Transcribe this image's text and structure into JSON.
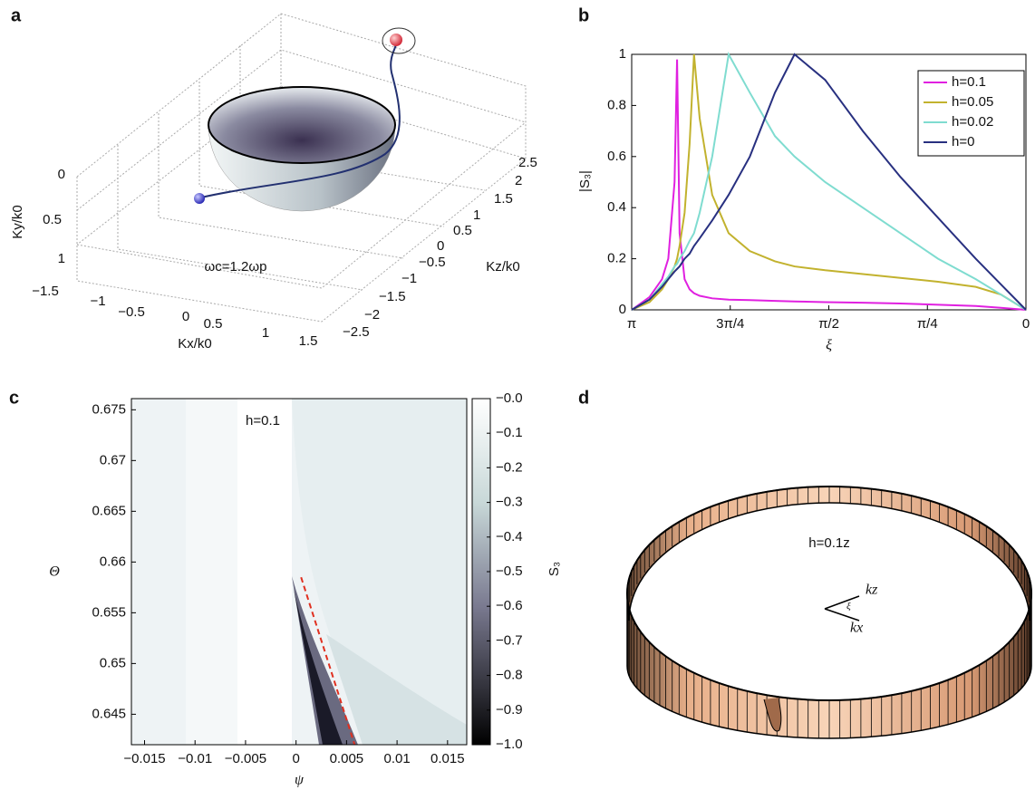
{
  "panel_labels": [
    "a",
    "b",
    "c",
    "d"
  ],
  "figure_a": {
    "x_label": "Kx/k0",
    "y_label": "Ky/k0",
    "z_label": "Kz/k0",
    "annotation": "ωc=1.2ωp",
    "x_ticks": [
      "−1.5",
      "−1",
      "−0.5",
      "0",
      "0.5",
      "1",
      "1.5"
    ],
    "y_ticks": [
      "0",
      "0.5",
      "1"
    ],
    "z_ticks": [
      "−2.5",
      "−2",
      "−1.5",
      "−1",
      "−0.5",
      "0",
      "0.5",
      "1",
      "1.5",
      "2",
      "2.5"
    ]
  },
  "figure_d": {
    "annotation": "h=0.1z",
    "kz": "kz",
    "kx": "kx",
    "angle": "ξ"
  },
  "chart_data": [
    {
      "type": "line",
      "x_label": "ξ",
      "y_label": "|S₃|",
      "x": [
        3.1416,
        3.0,
        2.9,
        2.85,
        2.8,
        2.78,
        2.76,
        2.72,
        2.68,
        2.645,
        2.6,
        2.5,
        2.369,
        2.2,
        2.0,
        1.844,
        1.6,
        1.3,
        1.0,
        0.7,
        0.4,
        0.2,
        0
      ],
      "series": [
        {
          "name": "h=0.1",
          "color": "#e020e0",
          "values": [
            0,
            0.05,
            0.12,
            0.2,
            0.5,
            0.98,
            0.3,
            0.12,
            0.08,
            0.065,
            0.055,
            0.045,
            0.04,
            0.038,
            0.035,
            0.033,
            0.03,
            0.028,
            0.025,
            0.02,
            0.015,
            0.008,
            0
          ]
        },
        {
          "name": "h=0.05",
          "color": "#c2b22e",
          "values": [
            0,
            0.03,
            0.08,
            0.12,
            0.17,
            0.2,
            0.25,
            0.38,
            0.65,
            1.0,
            0.75,
            0.45,
            0.3,
            0.23,
            0.19,
            0.17,
            0.155,
            0.14,
            0.125,
            0.11,
            0.09,
            0.06,
            0
          ]
        },
        {
          "name": "h=0.02",
          "color": "#7fdcd0",
          "values": [
            0,
            0.04,
            0.1,
            0.13,
            0.17,
            0.18,
            0.2,
            0.23,
            0.27,
            0.3,
            0.38,
            0.6,
            1.0,
            0.85,
            0.68,
            0.6,
            0.5,
            0.4,
            0.3,
            0.2,
            0.12,
            0.06,
            0
          ]
        },
        {
          "name": "h=0",
          "color": "#283080",
          "values": [
            0,
            0.04,
            0.09,
            0.12,
            0.15,
            0.16,
            0.17,
            0.2,
            0.22,
            0.25,
            0.28,
            0.35,
            0.45,
            0.6,
            0.85,
            1.0,
            0.9,
            0.7,
            0.52,
            0.36,
            0.2,
            0.1,
            0
          ]
        }
      ],
      "xlim": [
        3.1416,
        0
      ],
      "xticks": [
        {
          "value": 3.1416,
          "label": "π"
        },
        {
          "value": 2.3562,
          "label": "3π/4"
        },
        {
          "value": 1.5708,
          "label": "π/2"
        },
        {
          "value": 0.7854,
          "label": "π/4"
        },
        0
      ],
      "ylim": [
        0,
        1
      ],
      "yticks": [
        0,
        0.2,
        0.4,
        0.6,
        0.8,
        1
      ],
      "legend": "upper right"
    },
    {
      "type": "heatmap",
      "annotation": "h=0.1",
      "x_label": "ψ",
      "y_label": "Θ",
      "colorbar_label": "S₃",
      "xlim": [
        -0.0163,
        0.0169
      ],
      "xticks": [
        {
          "value": -0.015,
          "label": "−0.015"
        },
        {
          "value": -0.01,
          "label": "−0.01"
        },
        {
          "value": -0.005,
          "label": "−0.005"
        },
        0,
        0.005,
        0.01,
        0.015
      ],
      "ylim": [
        0.642,
        0.6761
      ],
      "yticks": [
        0.645,
        0.65,
        0.655,
        0.66,
        0.665,
        0.67,
        0.675
      ],
      "clim": [
        -1,
        0
      ],
      "cticks": [
        {
          "value": 0,
          "label": "−0.0"
        },
        {
          "value": -0.1,
          "label": "−0.1"
        },
        {
          "value": -0.2,
          "label": "−0.2"
        },
        {
          "value": -0.3,
          "label": "−0.3"
        },
        {
          "value": -0.4,
          "label": "−0.4"
        },
        {
          "value": -0.5,
          "label": "−0.5"
        },
        {
          "value": -0.6,
          "label": "−0.6"
        },
        {
          "value": -0.7,
          "label": "−0.7"
        },
        {
          "value": -0.8,
          "label": "−0.8"
        },
        {
          "value": -0.9,
          "label": "−0.9"
        },
        {
          "value": -1,
          "label": "−1.0"
        }
      ],
      "line": {
        "color": "#e03020",
        "x": [
          0.0005,
          0.0058
        ],
        "y": [
          0.6585,
          0.642
        ]
      }
    }
  ]
}
